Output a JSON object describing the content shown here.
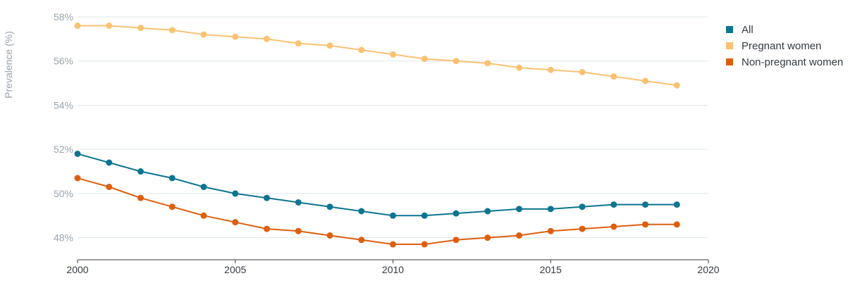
{
  "chart_data": {
    "type": "line",
    "title": "",
    "xlabel": "",
    "ylabel": "Prevalence (%)",
    "xlim": [
      2000,
      2020
    ],
    "ylim": [
      47,
      58
    ],
    "x_ticks": [
      {
        "value": 2000,
        "label": "2000"
      },
      {
        "value": 2005,
        "label": "2005"
      },
      {
        "value": 2010,
        "label": "2010"
      },
      {
        "value": 2015,
        "label": "2015"
      },
      {
        "value": 2020,
        "label": "2020"
      }
    ],
    "y_ticks": [
      {
        "value": 48,
        "label": "48%"
      },
      {
        "value": 50,
        "label": "50%"
      },
      {
        "value": 52,
        "label": "52%"
      },
      {
        "value": 54,
        "label": "54%"
      },
      {
        "value": 56,
        "label": "56%"
      },
      {
        "value": 58,
        "label": "58%"
      }
    ],
    "grid": true,
    "legend_position": "top-right",
    "x": [
      2000,
      2001,
      2002,
      2003,
      2004,
      2005,
      2006,
      2007,
      2008,
      2009,
      2010,
      2011,
      2012,
      2013,
      2014,
      2015,
      2016,
      2017,
      2018,
      2019
    ],
    "series": [
      {
        "name": "All",
        "color": "#0e7490",
        "values": [
          51.8,
          51.4,
          51.0,
          50.7,
          50.3,
          50.0,
          49.8,
          49.6,
          49.4,
          49.2,
          49.0,
          49.0,
          49.1,
          49.2,
          49.3,
          49.3,
          49.4,
          49.5,
          49.5,
          49.5
        ]
      },
      {
        "name": "Pregnant women",
        "color": "#f9c273",
        "values": [
          57.6,
          57.6,
          57.5,
          57.4,
          57.2,
          57.1,
          57.0,
          56.8,
          56.7,
          56.5,
          56.3,
          56.1,
          56.0,
          55.9,
          55.7,
          55.6,
          55.5,
          55.3,
          55.1,
          54.9
        ]
      },
      {
        "name": "Non-pregnant women",
        "color": "#dd5f0e",
        "values": [
          50.7,
          50.3,
          49.8,
          49.4,
          49.0,
          48.7,
          48.4,
          48.3,
          48.1,
          47.9,
          47.7,
          47.7,
          47.9,
          48.0,
          48.1,
          48.3,
          48.4,
          48.5,
          48.6,
          48.6
        ]
      }
    ]
  }
}
